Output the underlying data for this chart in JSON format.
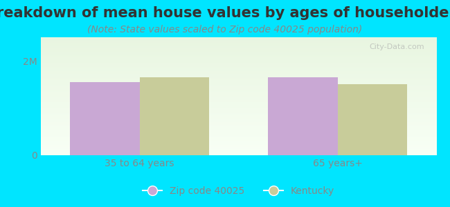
{
  "title": "Breakdown of mean house values by ages of householders",
  "subtitle": "(Note: State values scaled to Zip code 40025 population)",
  "categories": [
    "35 to 64 years",
    "65 years+"
  ],
  "zip_values": [
    1550000,
    1650000
  ],
  "state_values": [
    1650000,
    1500000
  ],
  "zip_color": "#c9a8d4",
  "state_color": "#c8cc9a",
  "ylim": [
    0,
    2500000
  ],
  "yticks": [
    0,
    2000000
  ],
  "ytick_labels": [
    "0",
    "2M"
  ],
  "bg_outer": "#00e5ff",
  "bg_plot_top": "#e8f5e0",
  "bg_plot_bottom": "#f8fff5",
  "bar_width": 0.35,
  "legend_zip": "Zip code 40025",
  "legend_state": "Kentucky",
  "title_fontsize": 15,
  "subtitle_fontsize": 10,
  "watermark": "City-Data.com"
}
